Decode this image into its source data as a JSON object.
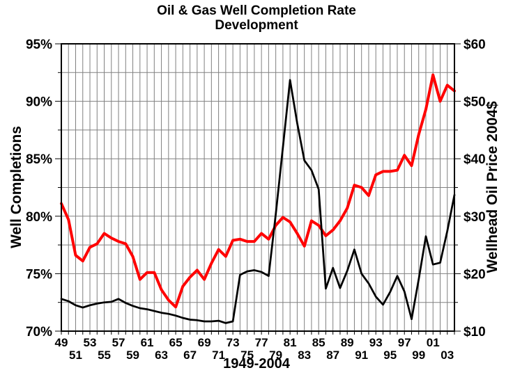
{
  "title": {
    "line1": "Oil & Gas Well Completion Rate",
    "line2": "Development"
  },
  "chart_data": {
    "type": "line",
    "title": "Oil & Gas Well Completion Rate Development",
    "xlabel": "1949-2004",
    "grid": {
      "color": "#808080",
      "vertical_every_years": 1,
      "horizontal_every_left_units": 2.5,
      "background": "#ffffff"
    },
    "left_axis": {
      "label": "Well Completions",
      "min": 70,
      "max": 95,
      "major_step": 5,
      "minor_step": 2.5,
      "tick_values": [
        95,
        90,
        85,
        80,
        75,
        70
      ],
      "ticks": [
        "95%",
        "90%",
        "85%",
        "80%",
        "75%",
        "70%"
      ]
    },
    "right_axis": {
      "label": "Wellhead Oil Price 2004$",
      "min": 10,
      "max": 60,
      "major_step": 10,
      "minor_step": 5,
      "tick_values": [
        60,
        50,
        40,
        30,
        20,
        10
      ],
      "ticks": [
        "$60",
        "$50",
        "$40",
        "$30",
        "$20",
        "$10"
      ]
    },
    "x_axis": {
      "label": "1949-2004",
      "ticks": [
        {
          "year": 1949,
          "label": "49",
          "row": 1
        },
        {
          "year": 1951,
          "label": "51",
          "row": 2
        },
        {
          "year": 1953,
          "label": "53",
          "row": 1
        },
        {
          "year": 1955,
          "label": "55",
          "row": 2
        },
        {
          "year": 1957,
          "label": "57",
          "row": 1
        },
        {
          "year": 1959,
          "label": "59",
          "row": 2
        },
        {
          "year": 1961,
          "label": "61",
          "row": 1
        },
        {
          "year": 1963,
          "label": "63",
          "row": 2
        },
        {
          "year": 1965,
          "label": "65",
          "row": 1
        },
        {
          "year": 1967,
          "label": "67",
          "row": 2
        },
        {
          "year": 1969,
          "label": "69",
          "row": 1
        },
        {
          "year": 1971,
          "label": "71",
          "row": 2
        },
        {
          "year": 1973,
          "label": "73",
          "row": 1
        },
        {
          "year": 1975,
          "label": "75",
          "row": 2
        },
        {
          "year": 1977,
          "label": "77",
          "row": 1
        },
        {
          "year": 1979,
          "label": "79",
          "row": 2
        },
        {
          "year": 1981,
          "label": "81",
          "row": 1
        },
        {
          "year": 1983,
          "label": "83",
          "row": 2
        },
        {
          "year": 1985,
          "label": "85",
          "row": 1
        },
        {
          "year": 1987,
          "label": "87",
          "row": 2
        },
        {
          "year": 1989,
          "label": "89",
          "row": 1
        },
        {
          "year": 1991,
          "label": "91",
          "row": 2
        },
        {
          "year": 1993,
          "label": "93",
          "row": 1
        },
        {
          "year": 1995,
          "label": "95",
          "row": 2
        },
        {
          "year": 1997,
          "label": "97",
          "row": 1
        },
        {
          "year": 1999,
          "label": "99",
          "row": 2
        },
        {
          "year": 2001,
          "label": "01",
          "row": 1
        },
        {
          "year": 2003,
          "label": "03",
          "row": 2
        }
      ]
    },
    "x": [
      1949,
      1950,
      1951,
      1952,
      1953,
      1954,
      1955,
      1956,
      1957,
      1958,
      1959,
      1960,
      1961,
      1962,
      1963,
      1964,
      1965,
      1966,
      1967,
      1968,
      1969,
      1970,
      1971,
      1972,
      1973,
      1974,
      1975,
      1976,
      1977,
      1978,
      1979,
      1980,
      1981,
      1982,
      1983,
      1984,
      1985,
      1986,
      1987,
      1988,
      1989,
      1990,
      1991,
      1992,
      1993,
      1994,
      1995,
      1996,
      1997,
      1998,
      1999,
      2000,
      2001,
      2002,
      2003,
      2004
    ],
    "series": [
      {
        "name": "Well Completions",
        "axis": "left",
        "unit": "%",
        "color": "#ff0000",
        "values": [
          81.1,
          79.7,
          76.6,
          76.1,
          77.3,
          77.6,
          78.5,
          78.1,
          77.8,
          77.6,
          76.5,
          74.5,
          75.1,
          75.1,
          73.6,
          72.7,
          72.1,
          73.9,
          74.7,
          75.3,
          74.5,
          75.9,
          77.1,
          76.5,
          77.9,
          78.0,
          77.8,
          77.8,
          78.5,
          78.0,
          79.2,
          79.9,
          79.5,
          78.5,
          77.4,
          79.6,
          79.2,
          78.3,
          78.8,
          79.6,
          80.7,
          82.7,
          82.5,
          81.8,
          83.6,
          83.9,
          83.9,
          84.0,
          85.3,
          84.4,
          87.1,
          89.3,
          92.3,
          90.0,
          91.4,
          90.9
        ]
      },
      {
        "name": "Wellhead Oil Price 2004$",
        "axis": "right",
        "unit": "$",
        "color": "#000000",
        "values": [
          15.6,
          15.2,
          14.5,
          14.1,
          14.5,
          14.8,
          15.0,
          15.1,
          15.6,
          14.9,
          14.4,
          14.0,
          13.8,
          13.5,
          13.2,
          13.0,
          12.7,
          12.3,
          12.0,
          11.9,
          11.7,
          11.7,
          11.8,
          11.4,
          11.7,
          19.8,
          20.4,
          20.6,
          20.3,
          19.6,
          30.3,
          42.0,
          53.7,
          46.2,
          39.7,
          38.0,
          34.7,
          17.4,
          21.0,
          17.5,
          20.5,
          24.2,
          20.0,
          18.3,
          16.0,
          14.6,
          16.8,
          19.6,
          16.9,
          12.1,
          19.0,
          26.5,
          21.6,
          21.9,
          27.4,
          33.7
        ]
      }
    ]
  }
}
